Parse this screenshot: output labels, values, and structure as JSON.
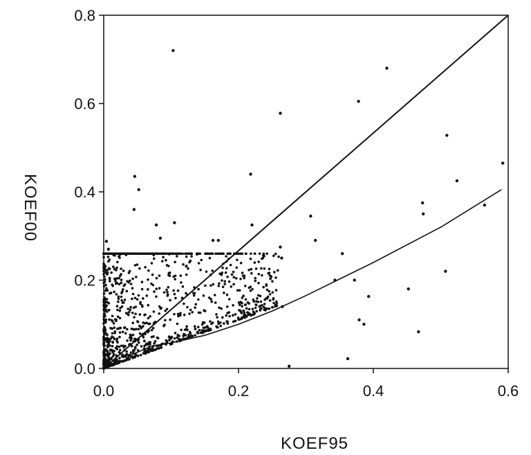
{
  "chart_data": {
    "type": "scatter",
    "title": "",
    "xlabel": "KOEF95",
    "ylabel": "KOEF00",
    "xlim": [
      0,
      0.6
    ],
    "ylim": [
      0,
      0.8
    ],
    "xticks": [
      "0.0",
      "0.2",
      "0.4",
      "0.6"
    ],
    "yticks": [
      "0.0",
      "0.2",
      "0.4",
      "0.6",
      "0.8"
    ],
    "grid": false,
    "legend": "none",
    "colors": {
      "points": "#111111",
      "lines": "#111111",
      "frame": "#111111"
    },
    "series": [
      {
        "type": "scatter",
        "points": [
          [
            0.103,
            0.72
          ],
          [
            0.42,
            0.68
          ],
          [
            0.378,
            0.605
          ],
          [
            0.262,
            0.578
          ],
          [
            0.509,
            0.528
          ],
          [
            0.592,
            0.465
          ],
          [
            0.218,
            0.44
          ],
          [
            0.046,
            0.435
          ],
          [
            0.524,
            0.425
          ],
          [
            0.052,
            0.405
          ],
          [
            0.473,
            0.375
          ],
          [
            0.565,
            0.37
          ],
          [
            0.045,
            0.36
          ],
          [
            0.474,
            0.35
          ],
          [
            0.307,
            0.345
          ],
          [
            0.105,
            0.33
          ],
          [
            0.078,
            0.325
          ],
          [
            0.22,
            0.325
          ],
          [
            0.084,
            0.295
          ],
          [
            0.162,
            0.29
          ],
          [
            0.17,
            0.29
          ],
          [
            0.314,
            0.29
          ],
          [
            0.004,
            0.288
          ],
          [
            0.262,
            0.275
          ],
          [
            0.007,
            0.27
          ],
          [
            0.354,
            0.26
          ],
          [
            0.264,
            0.25
          ],
          [
            0.507,
            0.22
          ],
          [
            0.343,
            0.2
          ],
          [
            0.372,
            0.2
          ],
          [
            0.452,
            0.18
          ],
          [
            0.393,
            0.163
          ],
          [
            0.265,
            0.14
          ],
          [
            0.379,
            0.11
          ],
          [
            0.386,
            0.1
          ],
          [
            0.467,
            0.083
          ],
          [
            0.362,
            0.022
          ],
          [
            0.275,
            0.005
          ]
        ],
        "cloud": {
          "x_range": [
            0,
            0.26
          ],
          "y_range": [
            0,
            0.26
          ],
          "count": 1300,
          "concentrated_near_origin": true
        }
      },
      {
        "type": "line",
        "points": [
          [
            0.0,
            0.0
          ],
          [
            0.6,
            0.8
          ]
        ]
      },
      {
        "type": "line",
        "points": [
          [
            0.04,
            0.03
          ],
          [
            0.07,
            0.05
          ],
          [
            0.1,
            0.058
          ],
          [
            0.15,
            0.075
          ],
          [
            0.2,
            0.1
          ],
          [
            0.25,
            0.13
          ],
          [
            0.3,
            0.165
          ],
          [
            0.4,
            0.24
          ],
          [
            0.5,
            0.32
          ],
          [
            0.59,
            0.405
          ]
        ]
      }
    ]
  }
}
